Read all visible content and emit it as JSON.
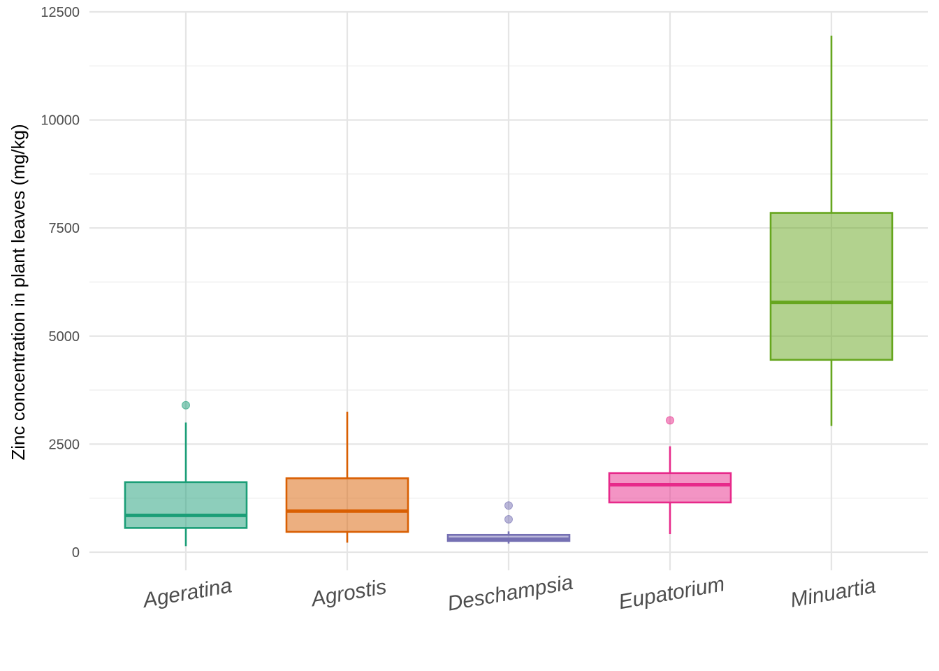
{
  "chart_data": {
    "type": "box",
    "title": "",
    "xlabel": "",
    "ylabel": "Zinc concentration in plant leaves (mg/kg)",
    "ylim": [
      0,
      12500
    ],
    "yticks": [
      0,
      2500,
      5000,
      7500,
      10000,
      12500
    ],
    "yticks_labels": [
      "0",
      "2500",
      "5000",
      "7500",
      "10000",
      "12500"
    ],
    "grid": true,
    "categories": [
      "Ageratina",
      "Agrostis",
      "Deschampsia",
      "Eupatorium",
      "Minuartia"
    ],
    "boxes": [
      {
        "label": "Ageratina",
        "color": "#1b9e77",
        "whisker_low": 140,
        "q1": 560,
        "median": 850,
        "q3": 1620,
        "whisker_high": 3000,
        "outliers": [
          3400
        ]
      },
      {
        "label": "Agrostis",
        "color": "#d95f02",
        "whisker_low": 220,
        "q1": 470,
        "median": 950,
        "q3": 1710,
        "whisker_high": 3250,
        "outliers": []
      },
      {
        "label": "Deschampsia",
        "color": "#7570b3",
        "whisker_low": 200,
        "q1": 260,
        "median": 300,
        "q3": 400,
        "whisker_high": 480,
        "outliers": [
          760,
          1080
        ]
      },
      {
        "label": "Eupatorium",
        "color": "#e7298a",
        "whisker_low": 420,
        "q1": 1150,
        "median": 1560,
        "q3": 1830,
        "whisker_high": 2450,
        "outliers": [
          3050
        ]
      },
      {
        "label": "Minuartia",
        "color": "#66a61e",
        "whisker_low": 2920,
        "q1": 4450,
        "median": 5780,
        "q3": 7850,
        "whisker_high": 11950,
        "outliers": []
      }
    ]
  }
}
